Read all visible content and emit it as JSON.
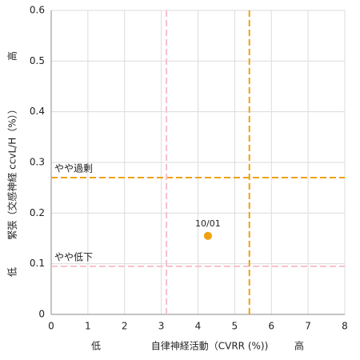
{
  "chart_data": {
    "type": "scatter",
    "x_label": "自律神経活動（CVRR (%))",
    "x_label_low": "低",
    "x_label_high": "高",
    "y_label": "緊張（交感神経 ccvL/H（%））",
    "y_label_low": "低",
    "y_label_high": "高",
    "xlim": [
      0,
      8
    ],
    "ylim": [
      0,
      0.6
    ],
    "xticks": [
      0,
      1,
      2,
      3,
      4,
      5,
      6,
      7,
      8
    ],
    "yticks": [
      0,
      0.1,
      0.2,
      0.3,
      0.4,
      0.5,
      0.6
    ],
    "grid": true,
    "series": [
      {
        "color": "#f0a010",
        "x": [
          4.27
        ],
        "values": [
          0.155
        ],
        "point_labels": [
          "10/01"
        ]
      }
    ],
    "reference_lines": [
      {
        "axis": "y",
        "value": 0.27,
        "color": "#f0a010",
        "label": "やや過剰"
      },
      {
        "axis": "y",
        "value": 0.095,
        "color": "#f7c0cb",
        "label": "やや低下"
      },
      {
        "axis": "x",
        "value": 5.4,
        "color": "#f0a010"
      },
      {
        "axis": "x",
        "value": 3.14,
        "color": "#f7c0cb"
      }
    ]
  }
}
